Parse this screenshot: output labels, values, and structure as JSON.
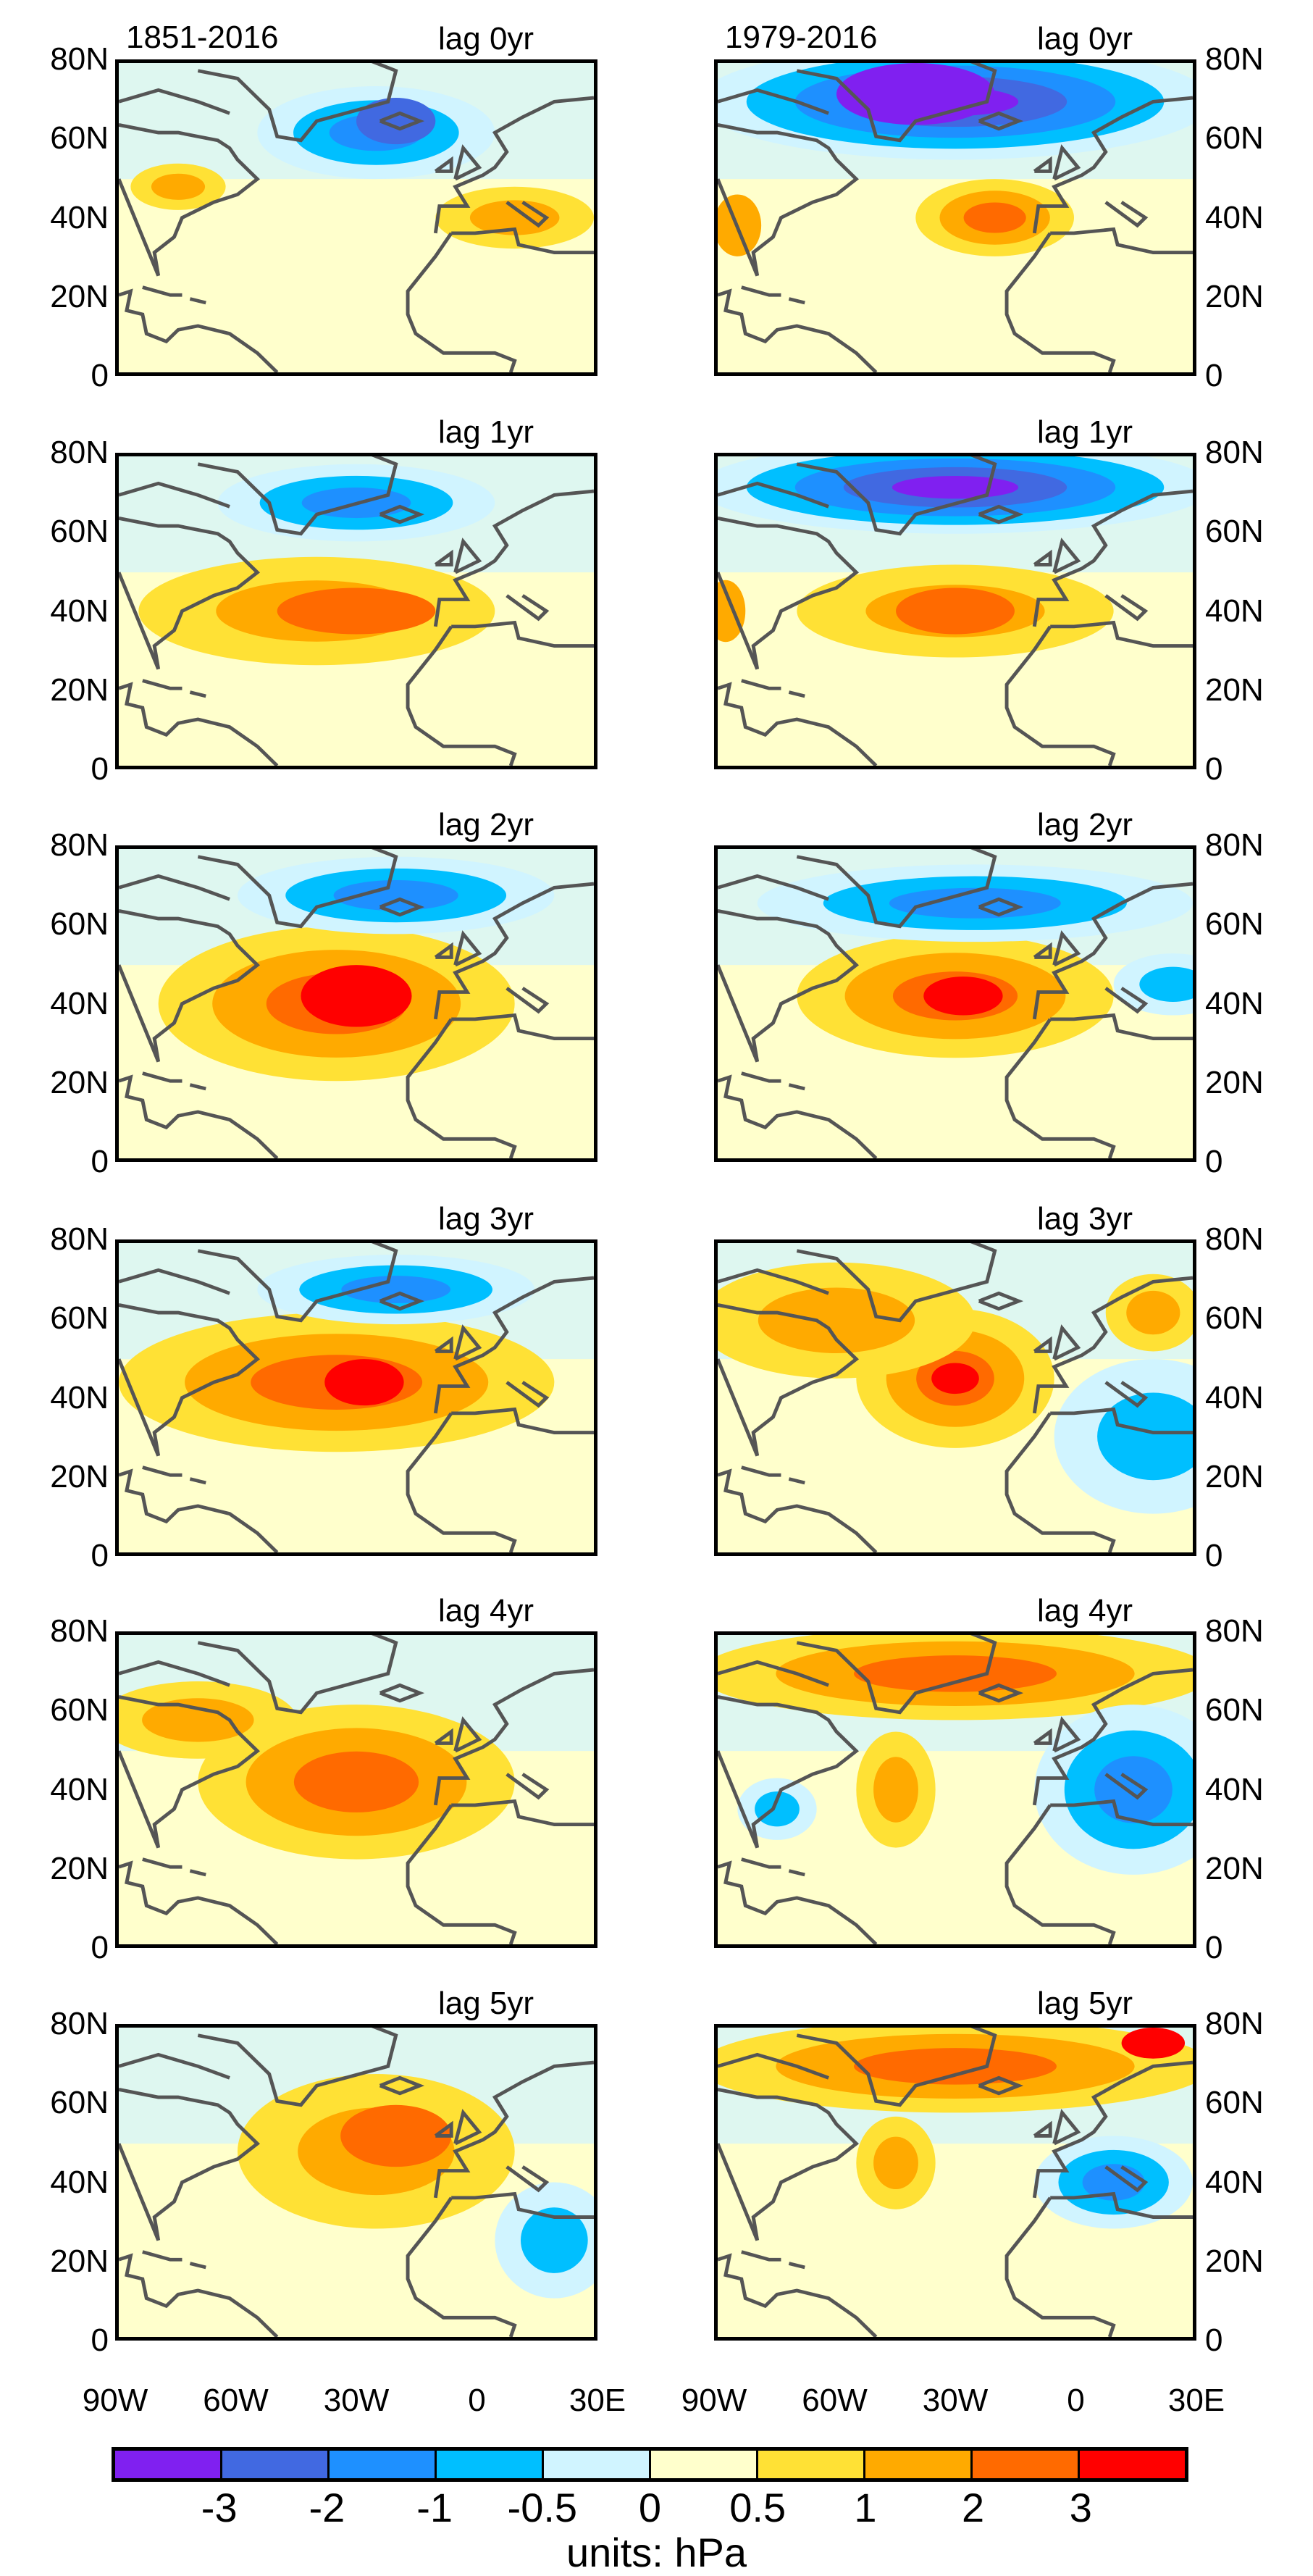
{
  "columns": [
    {
      "period": "1851-2016"
    },
    {
      "period": "1979-2016"
    }
  ],
  "lags": [
    "lag 0yr",
    "lag 1yr",
    "lag 2yr",
    "lag 3yr",
    "lag 4yr",
    "lag 5yr"
  ],
  "lat_ticks": [
    "80N",
    "60N",
    "40N",
    "20N",
    "0"
  ],
  "lon_ticks": [
    "90W",
    "60W",
    "30W",
    "0",
    "30E"
  ],
  "colorbar": {
    "colors": [
      "#8020F0",
      "#4169E1",
      "#1E90FF",
      "#00BFFF",
      "#D0F4FF",
      "#FFFFCC",
      "#FFE135",
      "#FFAA00",
      "#FF6A00",
      "#FF0000"
    ],
    "labels": [
      "-3",
      "-2",
      "-1",
      "-0.5",
      "0",
      "0.5",
      "1",
      "2",
      "3"
    ],
    "units": "units: hPa"
  },
  "chart_data": {
    "type": "heatmap",
    "description_variable": "",
    "lon_range": [
      "90W",
      "30E"
    ],
    "lat_range": [
      "0",
      "80N"
    ],
    "levels": [
      -3,
      -2,
      -1,
      -0.5,
      0,
      0.5,
      1,
      2,
      3
    ],
    "units": "hPa",
    "panels_per_column": 6
  }
}
